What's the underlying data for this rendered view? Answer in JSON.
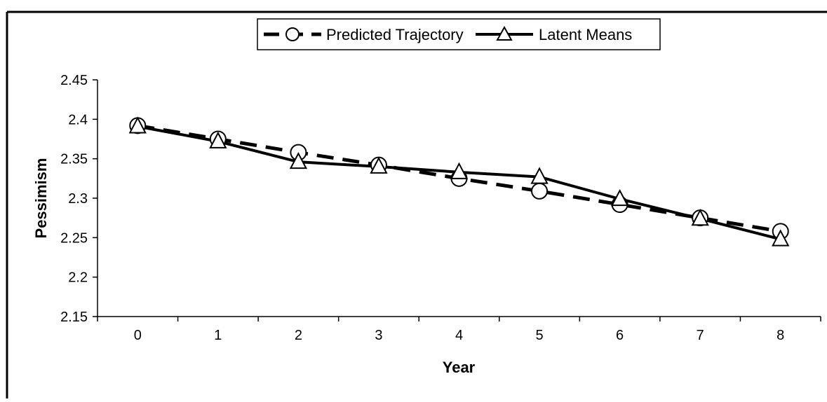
{
  "chart_data": {
    "type": "line",
    "title": "",
    "xlabel": "Year",
    "ylabel": "Pessimism",
    "categories": [
      "0",
      "1",
      "2",
      "3",
      "4",
      "5",
      "6",
      "7",
      "8"
    ],
    "ylim": [
      2.15,
      2.45
    ],
    "yticks": [
      "2.15",
      "2.2",
      "2.25",
      "2.3",
      "2.35",
      "2.4",
      "2.45"
    ],
    "grid": false,
    "legend_position": "top",
    "series": [
      {
        "name": "Predicted Trajectory",
        "line_style": "dashed",
        "marker": "circle",
        "color": "#000000",
        "values": [
          2.392,
          2.375,
          2.358,
          2.342,
          2.325,
          2.309,
          2.292,
          2.275,
          2.258
        ]
      },
      {
        "name": "Latent Means",
        "line_style": "solid",
        "marker": "triangle",
        "color": "#000000",
        "values": [
          2.391,
          2.372,
          2.346,
          2.34,
          2.333,
          2.327,
          2.299,
          2.274,
          2.248
        ]
      }
    ]
  }
}
